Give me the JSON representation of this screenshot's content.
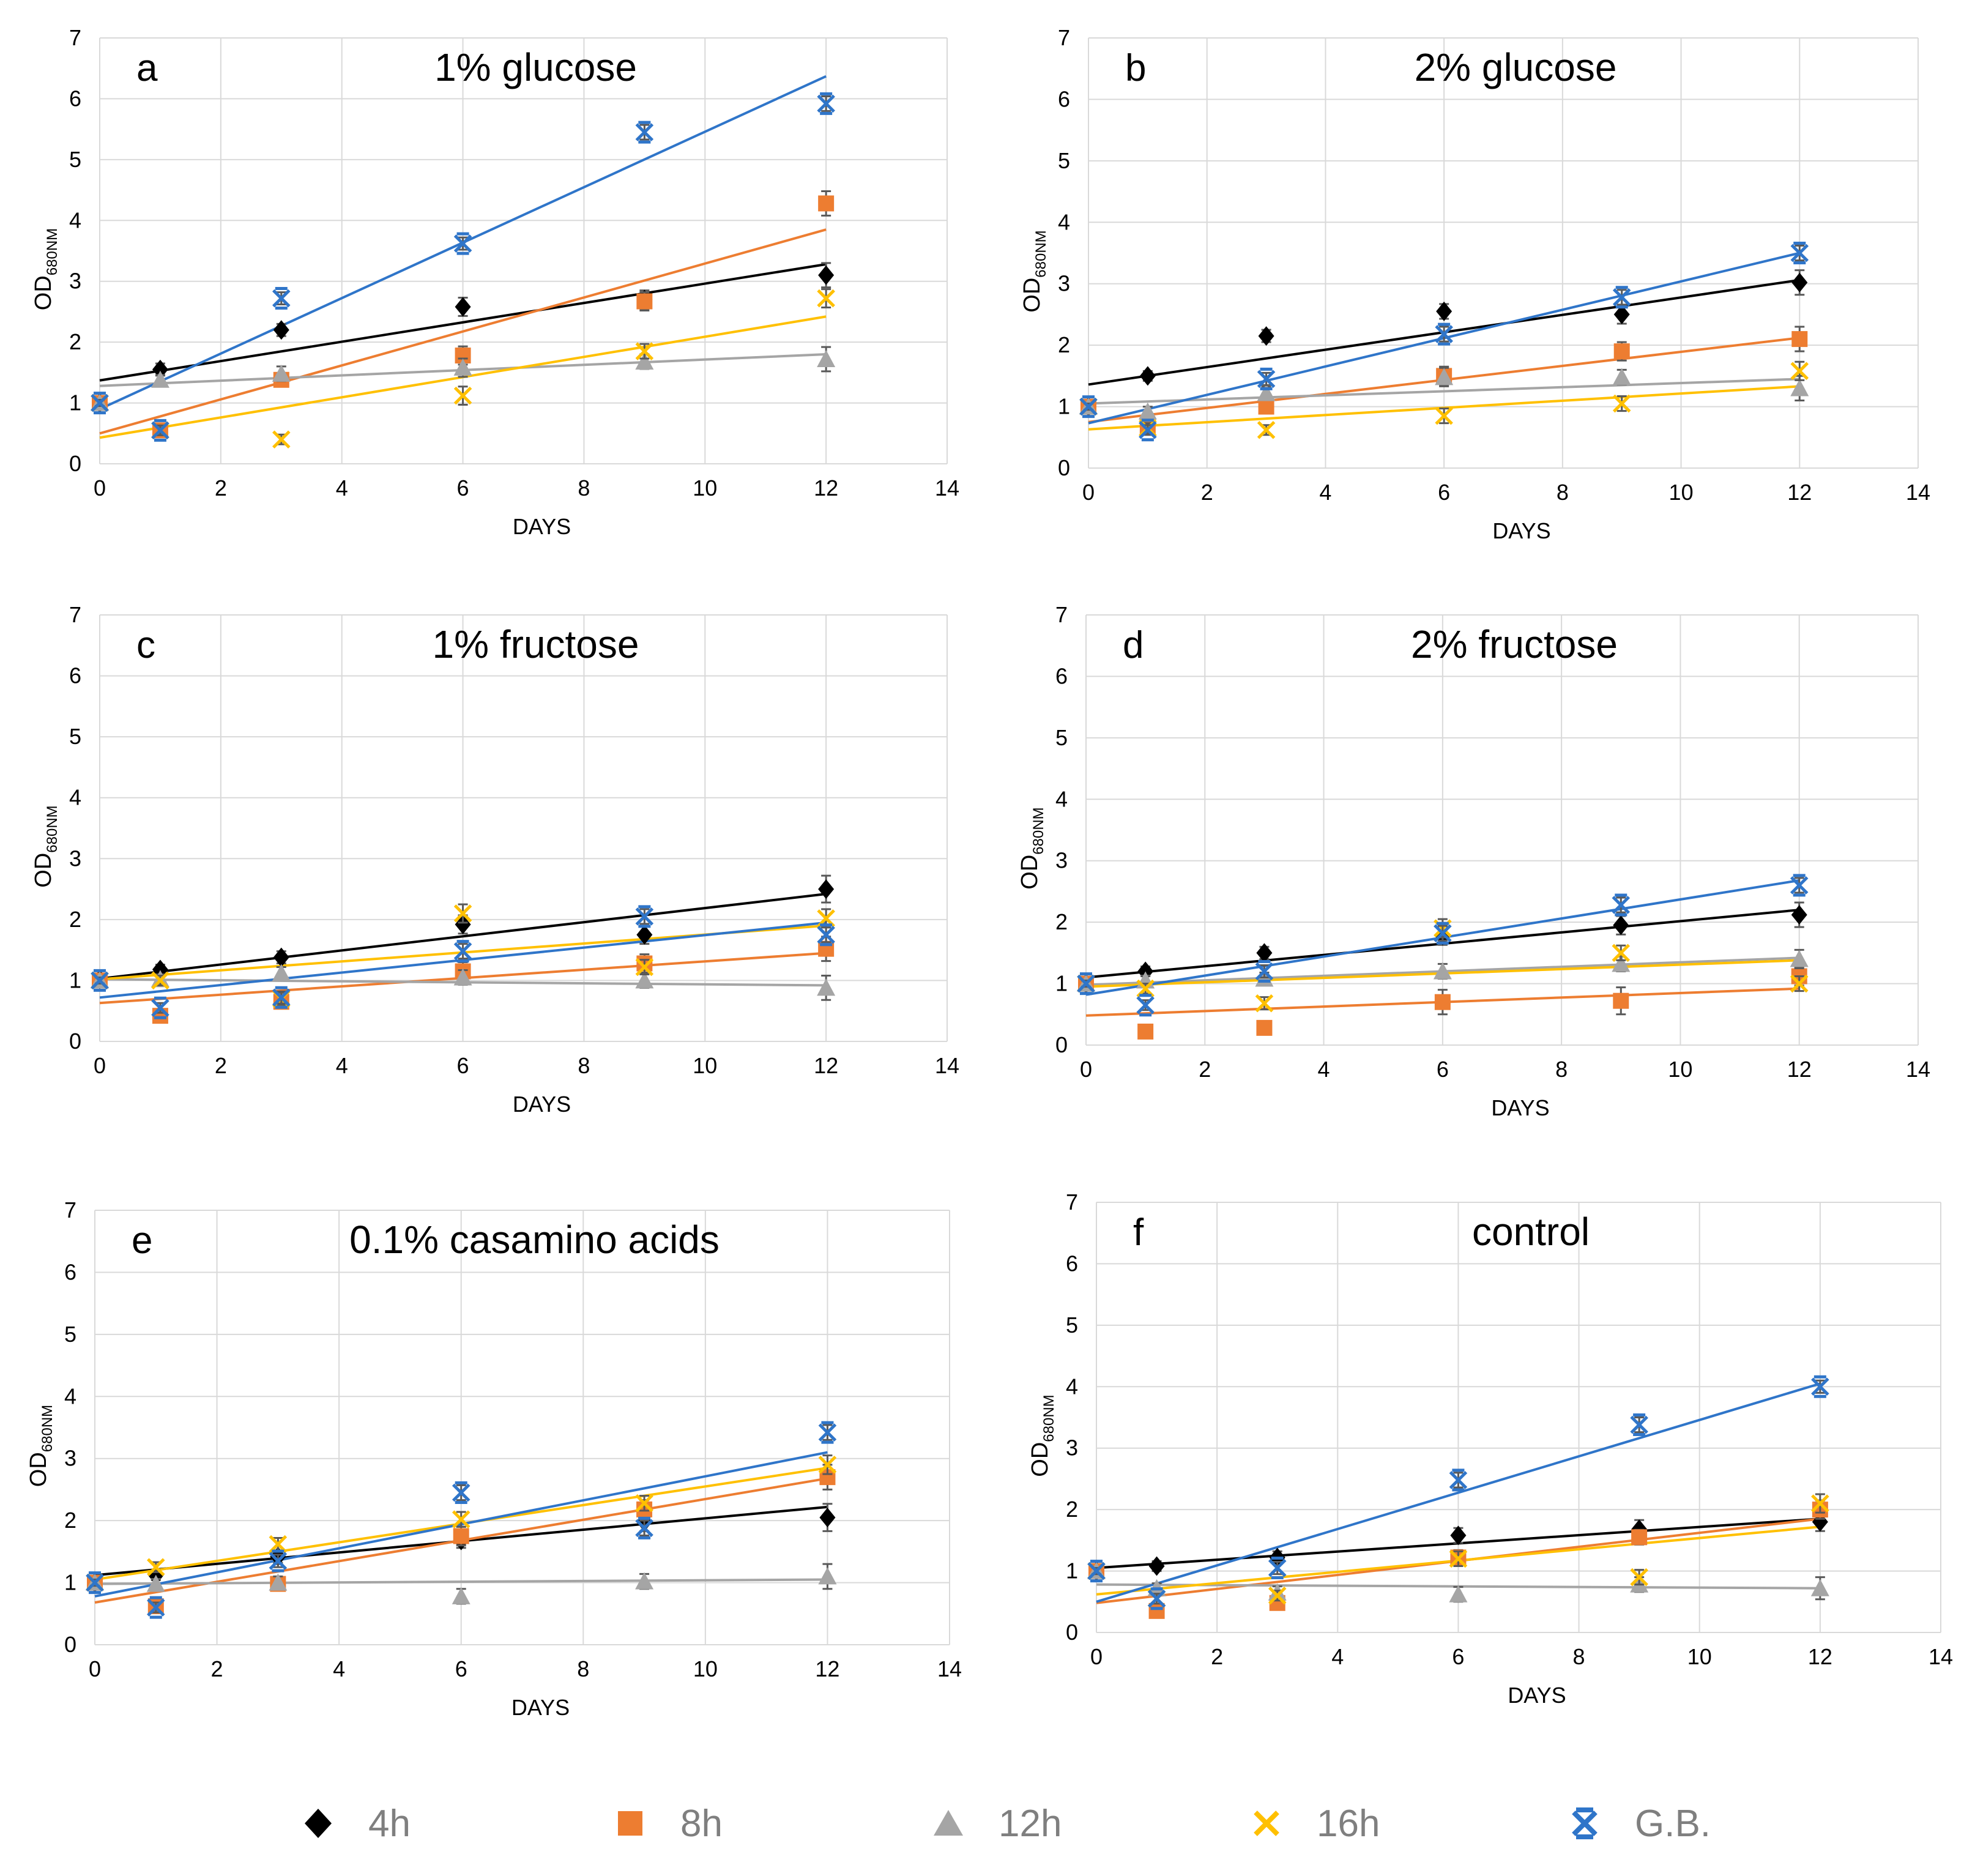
{
  "legend": {
    "items": [
      {
        "label": "4h",
        "marker": "diamond",
        "color": "#000000"
      },
      {
        "label": "8h",
        "marker": "square",
        "color": "#ED7D31"
      },
      {
        "label": "12h",
        "marker": "triangle",
        "color": "#A5A5A5"
      },
      {
        "label": "16h",
        "marker": "x",
        "color": "#FFC000"
      },
      {
        "label": "G.B.",
        "marker": "star",
        "color": "#2F75C9"
      }
    ]
  },
  "chart_data": [
    {
      "type": "scatter",
      "panel": "a",
      "title": "1% glucose",
      "xlabel": "DAYS",
      "ylabel_main": "OD",
      "ylabel_sub": "680NM",
      "xlim": [
        0,
        14
      ],
      "ylim": [
        0,
        7
      ],
      "x_ticks": [
        "0",
        "2",
        "4",
        "6",
        "8",
        "10",
        "12",
        "14"
      ],
      "y_ticks": [
        "0",
        "1",
        "2",
        "3",
        "4",
        "5",
        "6",
        "7"
      ],
      "x": [
        0,
        1,
        3,
        6,
        9,
        12
      ],
      "series": [
        {
          "name": "4h",
          "values": [
            1.0,
            1.55,
            2.2,
            2.58,
            2.7,
            3.1
          ],
          "errors": [
            0.05,
            0.1,
            0.1,
            0.15,
            0.15,
            0.2
          ],
          "trend": [
            1.37,
            3.28
          ]
        },
        {
          "name": "8h",
          "values": [
            1.0,
            0.55,
            1.38,
            1.78,
            2.67,
            4.28
          ],
          "errors": [
            0.05,
            0.08,
            0.1,
            0.15,
            0.15,
            0.2
          ],
          "trend": [
            0.5,
            3.85
          ]
        },
        {
          "name": "12h",
          "values": [
            1.0,
            1.38,
            1.48,
            1.58,
            1.68,
            1.72
          ],
          "errors": [
            0.05,
            0.08,
            0.12,
            0.15,
            0.12,
            0.2
          ],
          "trend": [
            1.28,
            1.8
          ]
        },
        {
          "name": "16h",
          "values": [
            1.0,
            0.55,
            0.4,
            1.12,
            1.85,
            2.72
          ],
          "errors": [
            0.05,
            0.08,
            0.08,
            0.15,
            0.12,
            0.15
          ],
          "trend": [
            0.43,
            2.42
          ]
        },
        {
          "name": "G.B.",
          "values": [
            1.0,
            0.55,
            2.72,
            3.62,
            5.45,
            5.92
          ],
          "errors": [
            0.05,
            0.08,
            0.1,
            0.1,
            0.12,
            0.12
          ],
          "trend": [
            0.9,
            6.37
          ]
        }
      ]
    },
    {
      "type": "scatter",
      "panel": "b",
      "title": "2% glucose",
      "xlabel": "DAYS",
      "ylabel_main": "OD",
      "ylabel_sub": "680NM",
      "xlim": [
        0,
        14
      ],
      "ylim": [
        0,
        7
      ],
      "x_ticks": [
        "0",
        "2",
        "4",
        "6",
        "8",
        "10",
        "12",
        "14"
      ],
      "y_ticks": [
        "0",
        "1",
        "2",
        "3",
        "4",
        "5",
        "6",
        "7"
      ],
      "x": [
        0,
        1,
        3,
        6,
        9,
        12
      ],
      "series": [
        {
          "name": "4h",
          "values": [
            1.0,
            1.5,
            2.15,
            2.55,
            2.5,
            3.02
          ],
          "errors": [
            0.05,
            0.08,
            0.1,
            0.12,
            0.15,
            0.2
          ],
          "trend": [
            1.36,
            3.06
          ]
        },
        {
          "name": "8h",
          "values": [
            1.0,
            0.68,
            1.0,
            1.5,
            1.9,
            2.1
          ],
          "errors": [
            0.05,
            0.08,
            0.1,
            0.15,
            0.15,
            0.2
          ],
          "trend": [
            0.75,
            2.12
          ]
        },
        {
          "name": "12h",
          "values": [
            1.0,
            0.92,
            1.22,
            1.48,
            1.48,
            1.3
          ],
          "errors": [
            0.05,
            0.08,
            0.1,
            0.15,
            0.12,
            0.2
          ],
          "trend": [
            1.05,
            1.45
          ]
        },
        {
          "name": "16h",
          "values": [
            1.0,
            0.65,
            0.62,
            0.85,
            1.05,
            1.58
          ],
          "errors": [
            0.05,
            0.08,
            0.08,
            0.12,
            0.12,
            0.15
          ],
          "trend": [
            0.63,
            1.33
          ]
        },
        {
          "name": "G.B.",
          "values": [
            1.0,
            0.62,
            1.45,
            2.18,
            2.78,
            3.5
          ],
          "errors": [
            0.05,
            0.08,
            0.1,
            0.12,
            0.12,
            0.12
          ],
          "trend": [
            0.73,
            3.5
          ]
        }
      ]
    },
    {
      "type": "scatter",
      "panel": "c",
      "title": "1% fructose",
      "xlabel": "DAYS",
      "ylabel_main": "OD",
      "ylabel_sub": "680NM",
      "xlim": [
        0,
        14
      ],
      "ylim": [
        0,
        7
      ],
      "x_ticks": [
        "0",
        "2",
        "4",
        "6",
        "8",
        "10",
        "12",
        "14"
      ],
      "y_ticks": [
        "0",
        "1",
        "2",
        "3",
        "4",
        "5",
        "6",
        "7"
      ],
      "x": [
        0,
        1,
        3,
        6,
        9,
        12
      ],
      "series": [
        {
          "name": "4h",
          "values": [
            1.02,
            1.18,
            1.38,
            1.92,
            1.75,
            2.5
          ],
          "errors": [
            0.05,
            0.08,
            0.1,
            0.15,
            0.15,
            0.22
          ],
          "trend": [
            1.03,
            2.42
          ]
        },
        {
          "name": "8h",
          "values": [
            1.0,
            0.42,
            0.65,
            1.15,
            1.28,
            1.52
          ],
          "errors": [
            0.05,
            0.08,
            0.1,
            0.15,
            0.15,
            0.2
          ],
          "trend": [
            0.63,
            1.45
          ]
        },
        {
          "name": "12h",
          "values": [
            1.0,
            1.02,
            1.12,
            1.05,
            1.0,
            0.88
          ],
          "errors": [
            0.05,
            0.08,
            0.1,
            0.12,
            0.12,
            0.2
          ],
          "trend": [
            1.02,
            0.92
          ]
        },
        {
          "name": "16h",
          "values": [
            1.0,
            1.0,
            0.7,
            2.1,
            1.22,
            2.02
          ],
          "errors": [
            0.05,
            0.08,
            0.1,
            0.15,
            0.12,
            0.15
          ],
          "trend": [
            1.02,
            1.9
          ]
        },
        {
          "name": "G.B.",
          "values": [
            1.0,
            0.55,
            0.72,
            1.48,
            2.05,
            1.75
          ],
          "errors": [
            0.05,
            0.08,
            0.1,
            0.12,
            0.12,
            0.12
          ],
          "trend": [
            0.72,
            1.95
          ]
        }
      ]
    },
    {
      "type": "scatter",
      "panel": "d",
      "title": "2% fructose",
      "xlabel": "DAYS",
      "ylabel_main": "OD",
      "ylabel_sub": "680NM",
      "xlim": [
        0,
        14
      ],
      "ylim": [
        0,
        7
      ],
      "x_ticks": [
        "0",
        "2",
        "4",
        "6",
        "8",
        "10",
        "12",
        "14"
      ],
      "y_ticks": [
        "0",
        "1",
        "2",
        "3",
        "4",
        "5",
        "6",
        "7"
      ],
      "x": [
        0,
        1,
        3,
        6,
        9,
        12
      ],
      "series": [
        {
          "name": "4h",
          "values": [
            1.0,
            1.2,
            1.5,
            1.78,
            1.95,
            2.12
          ],
          "errors": [
            0.05,
            0.08,
            0.1,
            0.15,
            0.15,
            0.2
          ],
          "trend": [
            1.1,
            2.2
          ]
        },
        {
          "name": "8h",
          "values": [
            1.0,
            0.22,
            0.28,
            0.7,
            0.72,
            1.12
          ],
          "errors": [
            0.05,
            0.06,
            0.08,
            0.2,
            0.22,
            0.15
          ],
          "trend": [
            0.48,
            0.92
          ]
        },
        {
          "name": "12h",
          "values": [
            1.0,
            1.05,
            1.08,
            1.2,
            1.32,
            1.4
          ],
          "errors": [
            0.05,
            0.08,
            0.1,
            0.12,
            0.12,
            0.15
          ],
          "trend": [
            0.98,
            1.42
          ]
        },
        {
          "name": "16h",
          "values": [
            1.0,
            0.92,
            0.68,
            1.9,
            1.5,
            1.0
          ],
          "errors": [
            0.05,
            0.08,
            0.1,
            0.15,
            0.12,
            0.12
          ],
          "trend": [
            0.95,
            1.38
          ]
        },
        {
          "name": "G.B.",
          "values": [
            1.0,
            0.65,
            1.2,
            1.82,
            2.28,
            2.6
          ],
          "errors": [
            0.05,
            0.08,
            0.1,
            0.12,
            0.12,
            0.12
          ],
          "trend": [
            0.82,
            2.68
          ]
        }
      ]
    },
    {
      "type": "scatter",
      "panel": "e",
      "title": "0.1% casamino acids",
      "xlabel": "DAYS",
      "ylabel_main": "OD",
      "ylabel_sub": "680NM",
      "xlim": [
        0,
        14
      ],
      "ylim": [
        0,
        7
      ],
      "x_ticks": [
        "0",
        "2",
        "4",
        "6",
        "8",
        "10",
        "12",
        "14"
      ],
      "y_ticks": [
        "0",
        "1",
        "2",
        "3",
        "4",
        "5",
        "6",
        "7"
      ],
      "x": [
        0,
        1,
        3,
        6,
        9,
        12
      ],
      "series": [
        {
          "name": "4h",
          "values": [
            1.0,
            1.12,
            1.42,
            1.68,
            1.98,
            2.05
          ],
          "errors": [
            0.05,
            0.08,
            0.1,
            0.12,
            0.15,
            0.22
          ],
          "trend": [
            1.12,
            2.22
          ]
        },
        {
          "name": "8h",
          "values": [
            1.0,
            0.62,
            0.98,
            1.75,
            2.18,
            2.7
          ],
          "errors": [
            0.05,
            0.08,
            0.1,
            0.15,
            0.15,
            0.2
          ],
          "trend": [
            0.68,
            2.68
          ]
        },
        {
          "name": "12h",
          "values": [
            1.0,
            0.98,
            1.0,
            0.78,
            1.02,
            1.1
          ],
          "errors": [
            0.05,
            0.08,
            0.1,
            0.12,
            0.12,
            0.2
          ],
          "trend": [
            0.98,
            1.05
          ]
        },
        {
          "name": "16h",
          "values": [
            1.0,
            1.25,
            1.62,
            2.02,
            2.28,
            2.9
          ],
          "errors": [
            0.05,
            0.08,
            0.1,
            0.12,
            0.12,
            0.15
          ],
          "trend": [
            1.05,
            2.85
          ]
        },
        {
          "name": "G.B.",
          "values": [
            1.0,
            0.6,
            1.35,
            2.45,
            1.88,
            3.42
          ],
          "errors": [
            0.05,
            0.08,
            0.1,
            0.12,
            0.12,
            0.12
          ],
          "trend": [
            0.78,
            3.1
          ]
        }
      ]
    },
    {
      "type": "scatter",
      "panel": "f",
      "title": "control",
      "xlabel": "DAYS",
      "ylabel_main": "OD",
      "ylabel_sub": "680NM",
      "xlim": [
        0,
        14
      ],
      "ylim": [
        0,
        7
      ],
      "x_ticks": [
        "0",
        "2",
        "4",
        "6",
        "8",
        "10",
        "12",
        "14"
      ],
      "y_ticks": [
        "0",
        "1",
        "2",
        "3",
        "4",
        "5",
        "6",
        "7"
      ],
      "x": [
        0,
        1,
        3,
        6,
        9,
        12
      ],
      "series": [
        {
          "name": "4h",
          "values": [
            1.0,
            1.08,
            1.22,
            1.58,
            1.68,
            1.8
          ],
          "errors": [
            0.05,
            0.08,
            0.1,
            0.12,
            0.15,
            0.15
          ],
          "trend": [
            1.05,
            1.85
          ]
        },
        {
          "name": "8h",
          "values": [
            1.0,
            0.35,
            0.48,
            1.22,
            1.55,
            2.0
          ],
          "errors": [
            0.05,
            0.06,
            0.08,
            0.12,
            0.12,
            0.15
          ],
          "trend": [
            0.48,
            1.85
          ]
        },
        {
          "name": "12h",
          "values": [
            1.0,
            0.72,
            0.65,
            0.62,
            0.78,
            0.72
          ],
          "errors": [
            0.05,
            0.08,
            0.1,
            0.12,
            0.12,
            0.18
          ],
          "trend": [
            0.78,
            0.72
          ]
        },
        {
          "name": "16h",
          "values": [
            1.0,
            0.55,
            0.6,
            1.2,
            0.9,
            2.1
          ],
          "errors": [
            0.05,
            0.08,
            0.08,
            0.12,
            0.12,
            0.15
          ],
          "trend": [
            0.62,
            1.72
          ]
        },
        {
          "name": "G.B.",
          "values": [
            1.0,
            0.55,
            1.05,
            2.48,
            3.38,
            4.0
          ],
          "errors": [
            0.05,
            0.08,
            0.1,
            0.12,
            0.12,
            0.1
          ],
          "trend": [
            0.5,
            4.05
          ]
        }
      ]
    }
  ]
}
